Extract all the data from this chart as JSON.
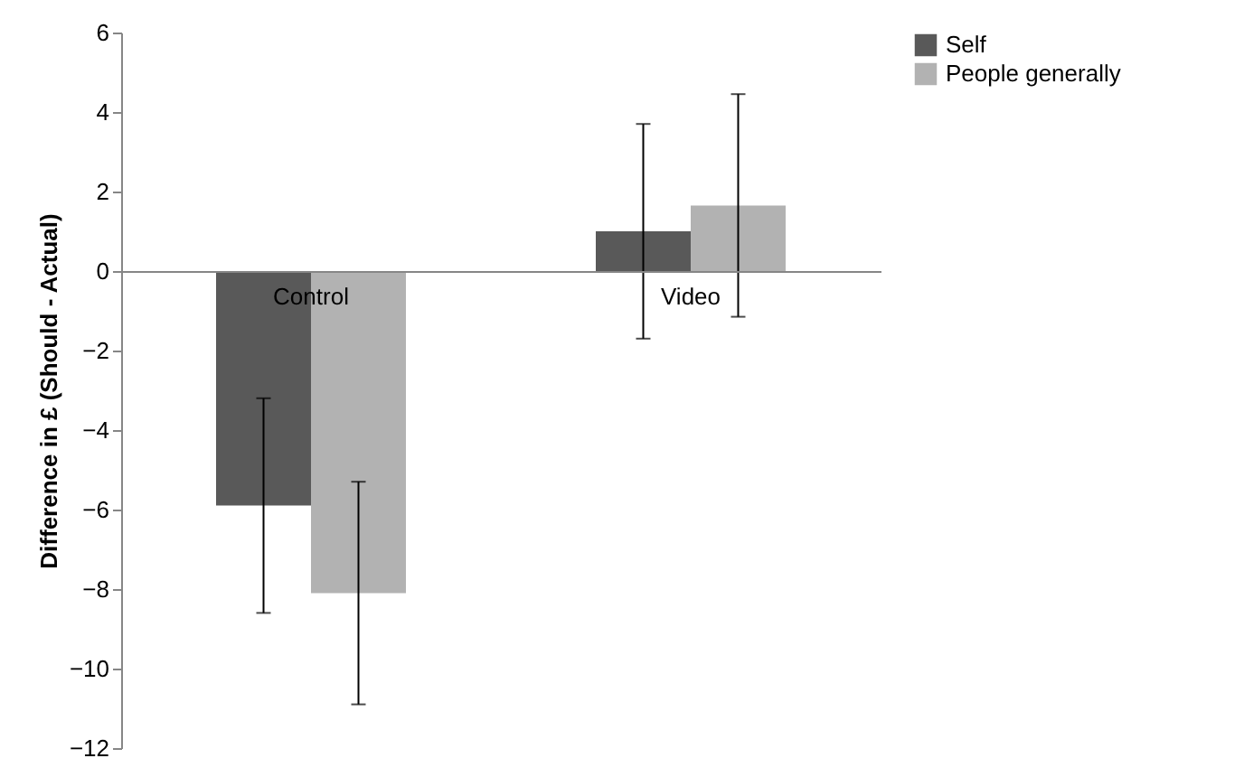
{
  "chart_data": {
    "type": "bar",
    "ylabel": "Difference in £ (Should - Actual)",
    "categories": [
      "Control",
      "Video"
    ],
    "series": [
      {
        "name": "Self",
        "color": "#595959",
        "values": [
          -5.9,
          1.0
        ],
        "errors": [
          2.7,
          2.7
        ]
      },
      {
        "name": "People generally",
        "color": "#b2b2b2",
        "values": [
          -8.1,
          1.65
        ],
        "errors": [
          2.8,
          2.8
        ]
      }
    ],
    "ylim": [
      -12,
      6
    ],
    "yticks": [
      -12,
      -10,
      -8,
      -6,
      -4,
      -2,
      0,
      2,
      4,
      6
    ],
    "grid": false,
    "legend": "right"
  }
}
